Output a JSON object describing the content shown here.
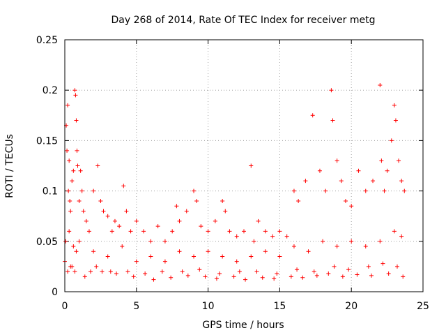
{
  "chart_data": {
    "type": "scatter",
    "title": "Day 268 of 2014, Rate Of TEC Index for receiver metg",
    "xlabel": "GPS time / hours",
    "ylabel": "ROTI / TECUs",
    "xlim": [
      0,
      25
    ],
    "ylim": [
      0,
      0.25
    ],
    "xticks": [
      0,
      5,
      10,
      15,
      20,
      25
    ],
    "xtick_labels": [
      "0",
      "5",
      "10",
      "15",
      "20",
      "25"
    ],
    "yticks": [
      0,
      0.05,
      0.1,
      0.15,
      0.2,
      0.25
    ],
    "ytick_labels": [
      "0",
      "0.05",
      "0.1",
      "0.15",
      "0.2",
      "0.25"
    ],
    "grid": true,
    "marker": "+",
    "color": "#ff0000",
    "series": [
      {
        "name": "ROTI",
        "x": [
          0.1,
          0.15,
          0.2,
          0.25,
          0.3,
          0.35,
          0.4,
          0.5,
          0.6,
          0.7,
          0.75,
          0.8,
          0.85,
          0.9,
          1.0,
          1.1,
          1.2,
          1.3,
          1.5,
          1.7,
          2.0,
          2.3,
          2.5,
          2.7,
          3.0,
          3.3,
          3.5,
          3.8,
          4.1,
          4.3,
          4.6,
          5.0,
          5.5,
          6.0,
          6.5,
          7.0,
          7.5,
          7.8,
          8.0,
          8.5,
          9.0,
          9.2,
          9.5,
          10.0,
          10.5,
          11.0,
          11.2,
          11.5,
          12.0,
          12.5,
          13.0,
          13.2,
          13.5,
          14.0,
          14.5,
          15.0,
          15.5,
          16.0,
          16.3,
          16.8,
          17.3,
          17.8,
          18.2,
          18.6,
          18.7,
          19.0,
          19.3,
          19.6,
          20.0,
          20.5,
          21.0,
          21.5,
          22.0,
          22.1,
          22.3,
          22.5,
          22.8,
          23.0,
          23.1,
          23.3,
          23.5,
          23.7,
          0.05,
          0.3,
          0.6,
          0.8,
          1.0,
          2.0,
          3.0,
          4.0,
          5.0,
          6.0,
          7.0,
          8.0,
          9.0,
          10.0,
          11.0,
          12.0,
          13.0,
          14.0,
          15.0,
          16.0,
          17.0,
          18.0,
          19.0,
          20.0,
          21.0,
          22.0,
          23.0,
          23.5,
          0.2,
          0.4,
          0.7,
          1.4,
          2.6,
          3.6,
          4.8,
          6.2,
          7.4,
          8.6,
          9.8,
          10.6,
          11.8,
          12.6,
          13.8,
          14.6,
          15.8,
          16.6,
          17.6,
          18.4,
          19.4,
          20.4,
          21.4,
          22.6,
          23.6,
          0.0,
          0.5,
          1.8,
          2.2,
          3.2,
          4.4,
          5.6,
          6.8,
          8.2,
          9.4,
          10.8,
          12.2,
          13.4,
          14.8,
          16.2,
          17.4,
          18.8,
          19.8,
          21.2,
          22.2,
          23.2
        ],
        "y": [
          0.165,
          0.14,
          0.185,
          0.1,
          0.13,
          0.09,
          0.08,
          0.11,
          0.12,
          0.2,
          0.195,
          0.17,
          0.14,
          0.125,
          0.09,
          0.12,
          0.1,
          0.08,
          0.07,
          0.06,
          0.1,
          0.125,
          0.09,
          0.08,
          0.075,
          0.06,
          0.07,
          0.065,
          0.105,
          0.08,
          0.06,
          0.07,
          0.06,
          0.05,
          0.065,
          0.05,
          0.06,
          0.085,
          0.07,
          0.08,
          0.1,
          0.09,
          0.065,
          0.06,
          0.07,
          0.09,
          0.08,
          0.06,
          0.055,
          0.06,
          0.125,
          0.05,
          0.07,
          0.06,
          0.055,
          0.06,
          0.055,
          0.1,
          0.09,
          0.11,
          0.175,
          0.12,
          0.1,
          0.2,
          0.17,
          0.13,
          0.11,
          0.09,
          0.085,
          0.12,
          0.1,
          0.11,
          0.205,
          0.13,
          0.1,
          0.12,
          0.15,
          0.185,
          0.17,
          0.13,
          0.11,
          0.1,
          0.05,
          0.06,
          0.045,
          0.04,
          0.05,
          0.04,
          0.035,
          0.045,
          0.03,
          0.035,
          0.03,
          0.04,
          0.035,
          0.04,
          0.035,
          0.03,
          0.035,
          0.04,
          0.035,
          0.045,
          0.04,
          0.05,
          0.045,
          0.05,
          0.045,
          0.05,
          0.06,
          0.055,
          0.02,
          0.025,
          0.02,
          0.015,
          0.02,
          0.018,
          0.015,
          0.012,
          0.014,
          0.016,
          0.015,
          0.013,
          0.015,
          0.012,
          0.014,
          0.013,
          0.015,
          0.014,
          0.016,
          0.018,
          0.015,
          0.017,
          0.016,
          0.018,
          0.015,
          0.03,
          0.025,
          0.02,
          0.025,
          0.02,
          0.02,
          0.018,
          0.02,
          0.02,
          0.022,
          0.018,
          0.02,
          0.02,
          0.018,
          0.022,
          0.02,
          0.025,
          0.022,
          0.025,
          0.028,
          0.025
        ]
      }
    ]
  }
}
